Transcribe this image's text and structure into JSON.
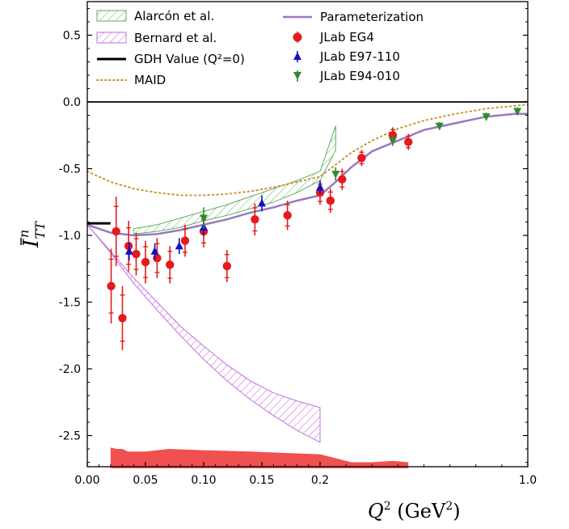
{
  "chart_data": {
    "type": "scatter",
    "title": "",
    "xlabel": "Q^2 (GeV^2)",
    "ylabel": "Ī_TT^n",
    "x_tick_labels": [
      "0.00",
      "0.05",
      "0.10",
      "0.15",
      "0.2",
      "1.0"
    ],
    "x_tick_values": [
      0.0,
      0.05,
      0.1,
      0.15,
      0.2,
      1.0
    ],
    "y_tick_labels": [
      "0.5",
      "0.0",
      "-0.5",
      "-1.0",
      "-1.5",
      "-2.0",
      "-2.5"
    ],
    "y_tick_values": [
      0.5,
      0.0,
      -0.5,
      -1.0,
      -1.5,
      -2.0,
      -2.5
    ],
    "ylim": [
      -2.75,
      0.75
    ],
    "x_scale": "piecewise: linear 0-0.2, compressed 0.2-1.0",
    "legend_placement": "top",
    "legend": {
      "alarcon": "Alarcón et al.",
      "bernard": "Bernard et al.",
      "gdh": "GDH Value (Q²=0)",
      "maid": "MAID",
      "param": "Parameterization",
      "eg4": "JLab EG4",
      "e97": "JLab E97-110",
      "e94": "JLab E94-010"
    },
    "colors": {
      "alarcon": "#5cae5c",
      "bernard": "#c06ee0",
      "gdh": "#000000",
      "maid": "#c8962e",
      "param": "#9a78c0",
      "eg4": "#e41a1c",
      "e97": "#1010c8",
      "e94": "#2e8b2e",
      "systematic": "#f05050"
    },
    "series": [
      {
        "name": "JLab EG4",
        "marker": "circle",
        "points": [
          {
            "x": 0.0205,
            "y": -1.38,
            "e": 0.28
          },
          {
            "x": 0.0248,
            "y": -0.97,
            "e": 0.26
          },
          {
            "x": 0.0302,
            "y": -1.62,
            "e": 0.24
          },
          {
            "x": 0.0355,
            "y": -1.08,
            "e": 0.19
          },
          {
            "x": 0.042,
            "y": -1.14,
            "e": 0.16
          },
          {
            "x": 0.05,
            "y": -1.2,
            "e": 0.16
          },
          {
            "x": 0.06,
            "y": -1.17,
            "e": 0.15
          },
          {
            "x": 0.071,
            "y": -1.22,
            "e": 0.14
          },
          {
            "x": 0.084,
            "y": -1.04,
            "e": 0.12
          },
          {
            "x": 0.1,
            "y": -0.97,
            "e": 0.12
          },
          {
            "x": 0.12,
            "y": -1.23,
            "e": 0.12
          },
          {
            "x": 0.144,
            "y": -0.88,
            "e": 0.12
          },
          {
            "x": 0.172,
            "y": -0.85,
            "e": 0.11
          },
          {
            "x": 0.2,
            "y": -0.68,
            "e": 0.09
          },
          {
            "x": 0.24,
            "y": -0.74,
            "e": 0.09
          },
          {
            "x": 0.285,
            "y": -0.58,
            "e": 0.08
          },
          {
            "x": 0.36,
            "y": -0.42,
            "e": 0.06
          },
          {
            "x": 0.48,
            "y": -0.25,
            "e": 0.06
          },
          {
            "x": 0.54,
            "y": -0.3,
            "e": 0.06
          }
        ]
      },
      {
        "name": "JLab E97-110",
        "marker": "triangle-up",
        "points": [
          {
            "x": 0.036,
            "y": -1.12,
            "e": 0.07
          },
          {
            "x": 0.058,
            "y": -1.12,
            "e": 0.06
          },
          {
            "x": 0.079,
            "y": -1.08,
            "e": 0.06
          },
          {
            "x": 0.1,
            "y": -0.94,
            "e": 0.06
          },
          {
            "x": 0.15,
            "y": -0.76,
            "e": 0.06
          },
          {
            "x": 0.2,
            "y": -0.64,
            "e": 0.05
          }
        ]
      },
      {
        "name": "JLab E94-010",
        "marker": "triangle-down",
        "points": [
          {
            "x": 0.1,
            "y": -0.87,
            "e": 0.08
          },
          {
            "x": 0.26,
            "y": -0.54,
            "e": 0.05
          },
          {
            "x": 0.48,
            "y": -0.29,
            "e": 0.04
          },
          {
            "x": 0.66,
            "y": -0.18,
            "e": 0.03
          },
          {
            "x": 0.84,
            "y": -0.11,
            "e": 0.03
          },
          {
            "x": 0.96,
            "y": -0.07,
            "e": 0.03
          }
        ]
      },
      {
        "name": "Parameterization",
        "type": "line",
        "points": [
          [
            0.0,
            -0.92
          ],
          [
            0.01,
            -0.95
          ],
          [
            0.02,
            -0.98
          ],
          [
            0.04,
            -1.0
          ],
          [
            0.06,
            -0.99
          ],
          [
            0.08,
            -0.96
          ],
          [
            0.1,
            -0.92
          ],
          [
            0.12,
            -0.88
          ],
          [
            0.14,
            -0.83
          ],
          [
            0.16,
            -0.79
          ],
          [
            0.18,
            -0.74
          ],
          [
            0.2,
            -0.7
          ],
          [
            0.26,
            -0.6
          ],
          [
            0.32,
            -0.49
          ],
          [
            0.4,
            -0.37
          ],
          [
            0.5,
            -0.29
          ],
          [
            0.6,
            -0.21
          ],
          [
            0.72,
            -0.16
          ],
          [
            0.84,
            -0.11
          ],
          [
            0.95,
            -0.09
          ],
          [
            1.0,
            -0.09
          ]
        ]
      },
      {
        "name": "MAID",
        "type": "line",
        "points": [
          [
            0.0,
            -0.52
          ],
          [
            0.02,
            -0.6
          ],
          [
            0.04,
            -0.65
          ],
          [
            0.06,
            -0.68
          ],
          [
            0.08,
            -0.7
          ],
          [
            0.1,
            -0.7
          ],
          [
            0.12,
            -0.69
          ],
          [
            0.14,
            -0.67
          ],
          [
            0.16,
            -0.64
          ],
          [
            0.18,
            -0.6
          ],
          [
            0.2,
            -0.56
          ],
          [
            0.26,
            -0.47
          ],
          [
            0.32,
            -0.38
          ],
          [
            0.4,
            -0.29
          ],
          [
            0.5,
            -0.2
          ],
          [
            0.6,
            -0.14
          ],
          [
            0.72,
            -0.09
          ],
          [
            0.84,
            -0.05
          ],
          [
            0.95,
            -0.03
          ],
          [
            1.0,
            -0.02
          ]
        ]
      },
      {
        "name": "Alarcón et al.",
        "type": "band",
        "upper": [
          [
            0.04,
            -0.95
          ],
          [
            0.06,
            -0.92
          ],
          [
            0.08,
            -0.87
          ],
          [
            0.1,
            -0.82
          ],
          [
            0.12,
            -0.77
          ],
          [
            0.14,
            -0.71
          ],
          [
            0.16,
            -0.65
          ],
          [
            0.18,
            -0.59
          ],
          [
            0.2,
            -0.52
          ],
          [
            0.26,
            -0.18
          ]
        ],
        "lower": [
          [
            0.04,
            -0.99
          ],
          [
            0.06,
            -0.97
          ],
          [
            0.08,
            -0.94
          ],
          [
            0.1,
            -0.89
          ],
          [
            0.12,
            -0.85
          ],
          [
            0.14,
            -0.8
          ],
          [
            0.16,
            -0.75
          ],
          [
            0.18,
            -0.68
          ],
          [
            0.2,
            -0.59
          ],
          [
            0.26,
            -0.36
          ]
        ]
      },
      {
        "name": "Bernard et al.",
        "type": "band",
        "upper": [
          [
            0.0,
            -0.92
          ],
          [
            0.02,
            -1.12
          ],
          [
            0.04,
            -1.32
          ],
          [
            0.06,
            -1.5
          ],
          [
            0.08,
            -1.68
          ],
          [
            0.1,
            -1.83
          ],
          [
            0.12,
            -1.97
          ],
          [
            0.14,
            -2.09
          ],
          [
            0.16,
            -2.18
          ],
          [
            0.18,
            -2.24
          ],
          [
            0.2,
            -2.29
          ]
        ],
        "lower": [
          [
            0.0,
            -0.92
          ],
          [
            0.02,
            -1.13
          ],
          [
            0.04,
            -1.36
          ],
          [
            0.06,
            -1.56
          ],
          [
            0.08,
            -1.75
          ],
          [
            0.1,
            -1.93
          ],
          [
            0.12,
            -2.09
          ],
          [
            0.14,
            -2.23
          ],
          [
            0.16,
            -2.35
          ],
          [
            0.18,
            -2.46
          ],
          [
            0.2,
            -2.55
          ]
        ]
      },
      {
        "name": "GDH Value (Q²=0)",
        "type": "segment",
        "x": [
          0.0,
          0.02
        ],
        "y": -0.91
      },
      {
        "name": "systematic",
        "type": "fill",
        "bottom": -2.745,
        "top": [
          [
            0.02,
            -2.59
          ],
          [
            0.025,
            -2.6
          ],
          [
            0.03,
            -2.6
          ],
          [
            0.035,
            -2.62
          ],
          [
            0.05,
            -2.62
          ],
          [
            0.07,
            -2.6
          ],
          [
            0.1,
            -2.61
          ],
          [
            0.14,
            -2.62
          ],
          [
            0.2,
            -2.64
          ],
          [
            0.26,
            -2.67
          ],
          [
            0.32,
            -2.7
          ],
          [
            0.4,
            -2.7
          ],
          [
            0.48,
            -2.69
          ],
          [
            0.54,
            -2.7
          ]
        ]
      }
    ]
  }
}
